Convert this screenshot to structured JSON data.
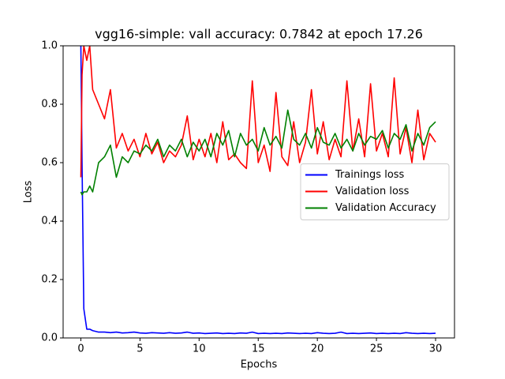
{
  "chart_data": {
    "type": "line",
    "title": "vgg16-simple: vall accuracy: 0.7842 at epoch 17.26",
    "x_label": "Epochs",
    "y_label": "Loss",
    "xlim": [
      -1.5,
      31.6
    ],
    "ylim": [
      0,
      1
    ],
    "xticks": [
      0,
      5,
      10,
      15,
      20,
      25,
      30
    ],
    "yticks": [
      {
        "value": 0,
        "label": "0.0"
      },
      0.2,
      0.4,
      0.6,
      0.8,
      {
        "value": 1,
        "label": "1.0"
      }
    ],
    "legend": "center right",
    "grid": false,
    "x": [
      0,
      0.1,
      0.25,
      0.5,
      0.75,
      1,
      1.5,
      2,
      2.5,
      3,
      3.5,
      4,
      4.5,
      5,
      5.5,
      6,
      6.5,
      7,
      7.5,
      8,
      8.5,
      9,
      9.5,
      10,
      10.5,
      11,
      11.5,
      12,
      12.5,
      13,
      13.5,
      14,
      14.5,
      15,
      15.5,
      16,
      16.5,
      17,
      17.5,
      18,
      18.5,
      19,
      19.5,
      20,
      20.5,
      21,
      21.5,
      22,
      22.5,
      23,
      23.5,
      24,
      24.5,
      25,
      25.5,
      26,
      26.5,
      27,
      27.5,
      28,
      28.5,
      29,
      29.5,
      30
    ],
    "series": [
      {
        "name": "Trainings loss",
        "color": "#0000ff",
        "values": [
          1.0,
          0.6,
          0.1,
          0.03,
          0.03,
          0.025,
          0.02,
          0.02,
          0.018,
          0.02,
          0.017,
          0.018,
          0.02,
          0.017,
          0.016,
          0.018,
          0.017,
          0.016,
          0.018,
          0.016,
          0.017,
          0.02,
          0.016,
          0.017,
          0.015,
          0.016,
          0.017,
          0.015,
          0.016,
          0.015,
          0.017,
          0.016,
          0.02,
          0.015,
          0.016,
          0.015,
          0.016,
          0.015,
          0.017,
          0.016,
          0.015,
          0.016,
          0.015,
          0.018,
          0.016,
          0.015,
          0.016,
          0.02,
          0.015,
          0.016,
          0.015,
          0.016,
          0.017,
          0.015,
          0.016,
          0.015,
          0.016,
          0.015,
          0.018,
          0.016,
          0.015,
          0.016,
          0.015,
          0.016
        ]
      },
      {
        "name": "Validation loss",
        "color": "#ff0000",
        "values": [
          0.55,
          0.9,
          1.0,
          0.95,
          1.0,
          0.85,
          0.8,
          0.75,
          0.85,
          0.65,
          0.7,
          0.64,
          0.68,
          0.62,
          0.7,
          0.63,
          0.67,
          0.6,
          0.64,
          0.62,
          0.66,
          0.76,
          0.61,
          0.68,
          0.62,
          0.7,
          0.6,
          0.74,
          0.61,
          0.63,
          0.6,
          0.58,
          0.88,
          0.6,
          0.66,
          0.57,
          0.84,
          0.62,
          0.59,
          0.74,
          0.6,
          0.67,
          0.85,
          0.63,
          0.74,
          0.61,
          0.68,
          0.62,
          0.88,
          0.64,
          0.75,
          0.62,
          0.87,
          0.64,
          0.7,
          0.62,
          0.89,
          0.63,
          0.72,
          0.6,
          0.78,
          0.61,
          0.7,
          0.67
        ]
      },
      {
        "name": "Validation Accuracy",
        "color": "#008000",
        "values": [
          0.5,
          0.49,
          0.5,
          0.5,
          0.52,
          0.5,
          0.6,
          0.62,
          0.66,
          0.55,
          0.62,
          0.6,
          0.64,
          0.63,
          0.66,
          0.64,
          0.68,
          0.62,
          0.66,
          0.64,
          0.68,
          0.62,
          0.67,
          0.64,
          0.68,
          0.62,
          0.7,
          0.66,
          0.71,
          0.62,
          0.7,
          0.66,
          0.68,
          0.64,
          0.72,
          0.66,
          0.69,
          0.65,
          0.78,
          0.68,
          0.66,
          0.7,
          0.65,
          0.72,
          0.67,
          0.66,
          0.7,
          0.65,
          0.68,
          0.64,
          0.7,
          0.66,
          0.69,
          0.68,
          0.71,
          0.65,
          0.7,
          0.68,
          0.73,
          0.64,
          0.7,
          0.66,
          0.72,
          0.74
        ]
      }
    ]
  }
}
